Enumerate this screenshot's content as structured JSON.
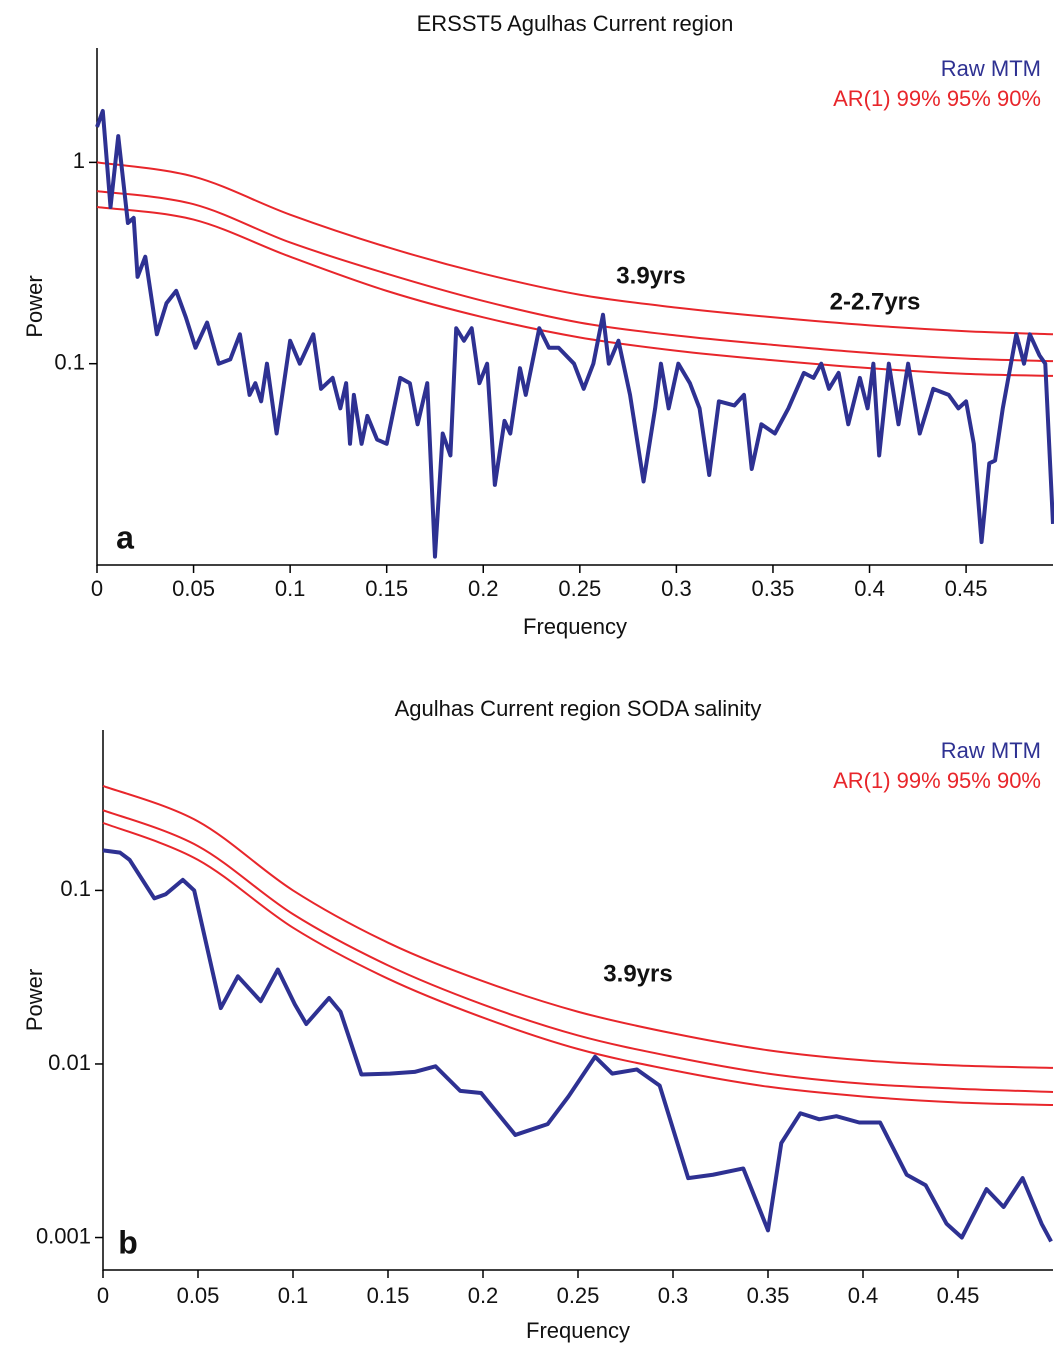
{
  "chart_data": [
    {
      "type": "line",
      "title": "ERSST5 Agulhas Current region",
      "xlabel": "Frequency",
      "ylabel": "Power",
      "panel_label": "a",
      "log_y": true,
      "xlim": [
        0,
        0.495
      ],
      "ylim": [
        0.01,
        3.7
      ],
      "xticks": [
        0,
        0.05,
        0.1,
        0.15,
        0.2,
        0.25,
        0.3,
        0.35,
        0.4,
        0.45
      ],
      "yticks": [
        0.1,
        1
      ],
      "annotations": [
        "3.9yrs",
        "2-2.7yrs"
      ],
      "series": [
        {
          "name": "Raw MTM",
          "color": "#2e3192",
          "x": [
            0,
            0.003,
            0.007,
            0.011,
            0.016,
            0.019,
            0.021,
            0.025,
            0.031,
            0.036,
            0.041,
            0.046,
            0.051,
            0.057,
            0.063,
            0.069,
            0.074,
            0.079,
            0.082,
            0.085,
            0.088,
            0.093,
            0.1,
            0.105,
            0.112,
            0.116,
            0.122,
            0.126,
            0.129,
            0.131,
            0.133,
            0.137,
            0.14,
            0.145,
            0.15,
            0.157,
            0.162,
            0.166,
            0.171,
            0.175,
            0.179,
            0.183,
            0.186,
            0.19,
            0.194,
            0.198,
            0.202,
            0.206,
            0.211,
            0.214,
            0.219,
            0.222,
            0.229,
            0.234,
            0.239,
            0.247,
            0.252,
            0.257,
            0.262,
            0.265,
            0.27,
            0.276,
            0.283,
            0.289,
            0.292,
            0.296,
            0.301,
            0.307,
            0.312,
            0.317,
            0.322,
            0.33,
            0.335,
            0.339,
            0.344,
            0.351,
            0.358,
            0.366,
            0.371,
            0.375,
            0.379,
            0.384,
            0.389,
            0.395,
            0.399,
            0.402,
            0.405,
            0.41,
            0.415,
            0.42,
            0.426,
            0.433,
            0.441,
            0.446,
            0.45,
            0.454,
            0.458,
            0.462,
            0.465,
            0.469,
            0.476,
            0.48,
            0.483,
            0.488,
            0.491,
            0.495
          ],
          "values": [
            1.5,
            1.8,
            0.6,
            1.35,
            0.5,
            0.53,
            0.27,
            0.34,
            0.14,
            0.2,
            0.23,
            0.17,
            0.12,
            0.16,
            0.1,
            0.105,
            0.14,
            0.07,
            0.08,
            0.065,
            0.1,
            0.045,
            0.13,
            0.1,
            0.14,
            0.075,
            0.085,
            0.06,
            0.08,
            0.04,
            0.07,
            0.04,
            0.055,
            0.042,
            0.04,
            0.085,
            0.08,
            0.05,
            0.08,
            0.011,
            0.045,
            0.035,
            0.15,
            0.13,
            0.15,
            0.08,
            0.1,
            0.025,
            0.052,
            0.045,
            0.095,
            0.07,
            0.15,
            0.12,
            0.12,
            0.1,
            0.075,
            0.1,
            0.175,
            0.1,
            0.13,
            0.07,
            0.026,
            0.06,
            0.1,
            0.06,
            0.1,
            0.08,
            0.06,
            0.028,
            0.065,
            0.062,
            0.07,
            0.03,
            0.05,
            0.045,
            0.06,
            0.09,
            0.085,
            0.1,
            0.075,
            0.09,
            0.05,
            0.085,
            0.06,
            0.1,
            0.035,
            0.1,
            0.05,
            0.1,
            0.045,
            0.075,
            0.07,
            0.06,
            0.065,
            0.04,
            0.013,
            0.032,
            0.033,
            0.06,
            0.14,
            0.1,
            0.14,
            0.11,
            0.1,
            0.016
          ]
        }
      ],
      "significance": {
        "name": "AR(1) 99% 95% 90%",
        "color": "#e8262b",
        "x": [
          0,
          0.05,
          0.1,
          0.15,
          0.2,
          0.25,
          0.3,
          0.35,
          0.4,
          0.45,
          0.495
        ],
        "levels": [
          [
            1.0,
            0.85,
            0.55,
            0.38,
            0.28,
            0.22,
            0.19,
            0.17,
            0.155,
            0.145,
            0.14
          ],
          [
            0.72,
            0.62,
            0.4,
            0.28,
            0.205,
            0.16,
            0.138,
            0.124,
            0.113,
            0.106,
            0.103
          ],
          [
            0.6,
            0.52,
            0.34,
            0.23,
            0.17,
            0.135,
            0.116,
            0.104,
            0.095,
            0.089,
            0.087
          ]
        ]
      }
    },
    {
      "type": "line",
      "title": "Agulhas Current region SODA salinity",
      "xlabel": "Frequency",
      "ylabel": "Power",
      "panel_label": "b",
      "log_y": true,
      "xlim": [
        0,
        0.5
      ],
      "ylim": [
        0.00065,
        0.84
      ],
      "xticks": [
        0,
        0.05,
        0.1,
        0.15,
        0.2,
        0.25,
        0.3,
        0.35,
        0.4,
        0.45
      ],
      "yticks": [
        0.001,
        0.01,
        0.1
      ],
      "annotations": [
        "3.9yrs"
      ],
      "series": [
        {
          "name": "Raw MTM",
          "color": "#2e3192",
          "x": [
            0,
            0.009,
            0.014,
            0.027,
            0.033,
            0.042,
            0.048,
            0.062,
            0.071,
            0.083,
            0.092,
            0.101,
            0.107,
            0.119,
            0.125,
            0.136,
            0.151,
            0.164,
            0.175,
            0.188,
            0.199,
            0.217,
            0.234,
            0.245,
            0.259,
            0.268,
            0.281,
            0.293,
            0.308,
            0.321,
            0.337,
            0.35,
            0.357,
            0.367,
            0.377,
            0.386,
            0.398,
            0.409,
            0.423,
            0.433,
            0.444,
            0.452,
            0.465,
            0.474,
            0.484,
            0.494,
            0.499
          ],
          "values": [
            0.17,
            0.165,
            0.15,
            0.09,
            0.095,
            0.115,
            0.1,
            0.021,
            0.032,
            0.023,
            0.035,
            0.022,
            0.017,
            0.024,
            0.02,
            0.0087,
            0.0088,
            0.009,
            0.0097,
            0.007,
            0.0068,
            0.0039,
            0.0045,
            0.0065,
            0.011,
            0.0088,
            0.0093,
            0.0075,
            0.0022,
            0.0023,
            0.0025,
            0.0011,
            0.0035,
            0.0052,
            0.0048,
            0.005,
            0.0046,
            0.0046,
            0.0023,
            0.002,
            0.0012,
            0.001,
            0.0019,
            0.0015,
            0.0022,
            0.0012,
            0.00095
          ]
        }
      ],
      "significance": {
        "name": "AR(1) 99% 95% 90%",
        "color": "#e8262b",
        "x": [
          0,
          0.05,
          0.1,
          0.15,
          0.2,
          0.25,
          0.3,
          0.35,
          0.4,
          0.45,
          0.5
        ],
        "levels": [
          [
            0.4,
            0.25,
            0.1,
            0.05,
            0.03,
            0.02,
            0.015,
            0.012,
            0.0105,
            0.0098,
            0.0095
          ],
          [
            0.29,
            0.18,
            0.073,
            0.037,
            0.022,
            0.0146,
            0.011,
            0.0088,
            0.0077,
            0.0072,
            0.0069
          ],
          [
            0.245,
            0.15,
            0.061,
            0.031,
            0.0185,
            0.0122,
            0.0092,
            0.0074,
            0.0065,
            0.006,
            0.0058
          ]
        ]
      }
    }
  ]
}
